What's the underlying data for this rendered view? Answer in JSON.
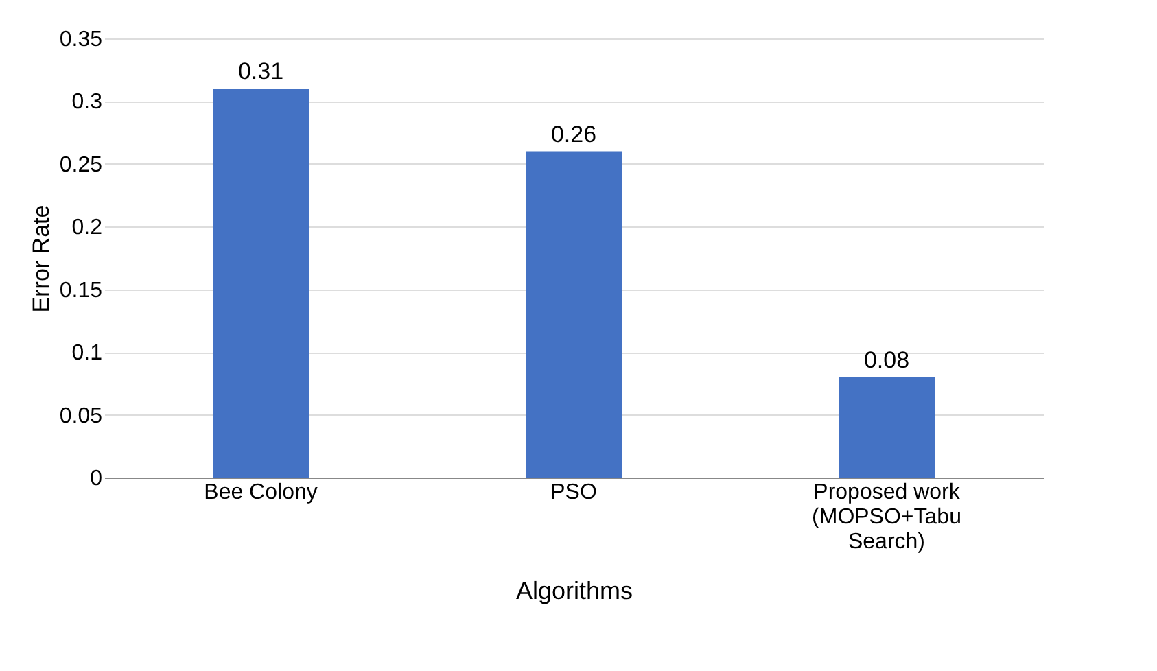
{
  "chart_data": {
    "type": "bar",
    "categories": [
      "Bee Colony",
      "PSO",
      "Proposed work (MOPSO+Tabu Search)"
    ],
    "values": [
      0.31,
      0.26,
      0.08
    ],
    "color": "#4472c4",
    "xlabel": "Algorithms",
    "ylabel": "Error Rate",
    "ylim": [
      0,
      0.35
    ],
    "yticks": [
      0,
      0.05,
      0.1,
      0.15,
      0.2,
      0.25,
      0.3,
      0.35
    ],
    "grid": "y",
    "data_labels": true
  }
}
